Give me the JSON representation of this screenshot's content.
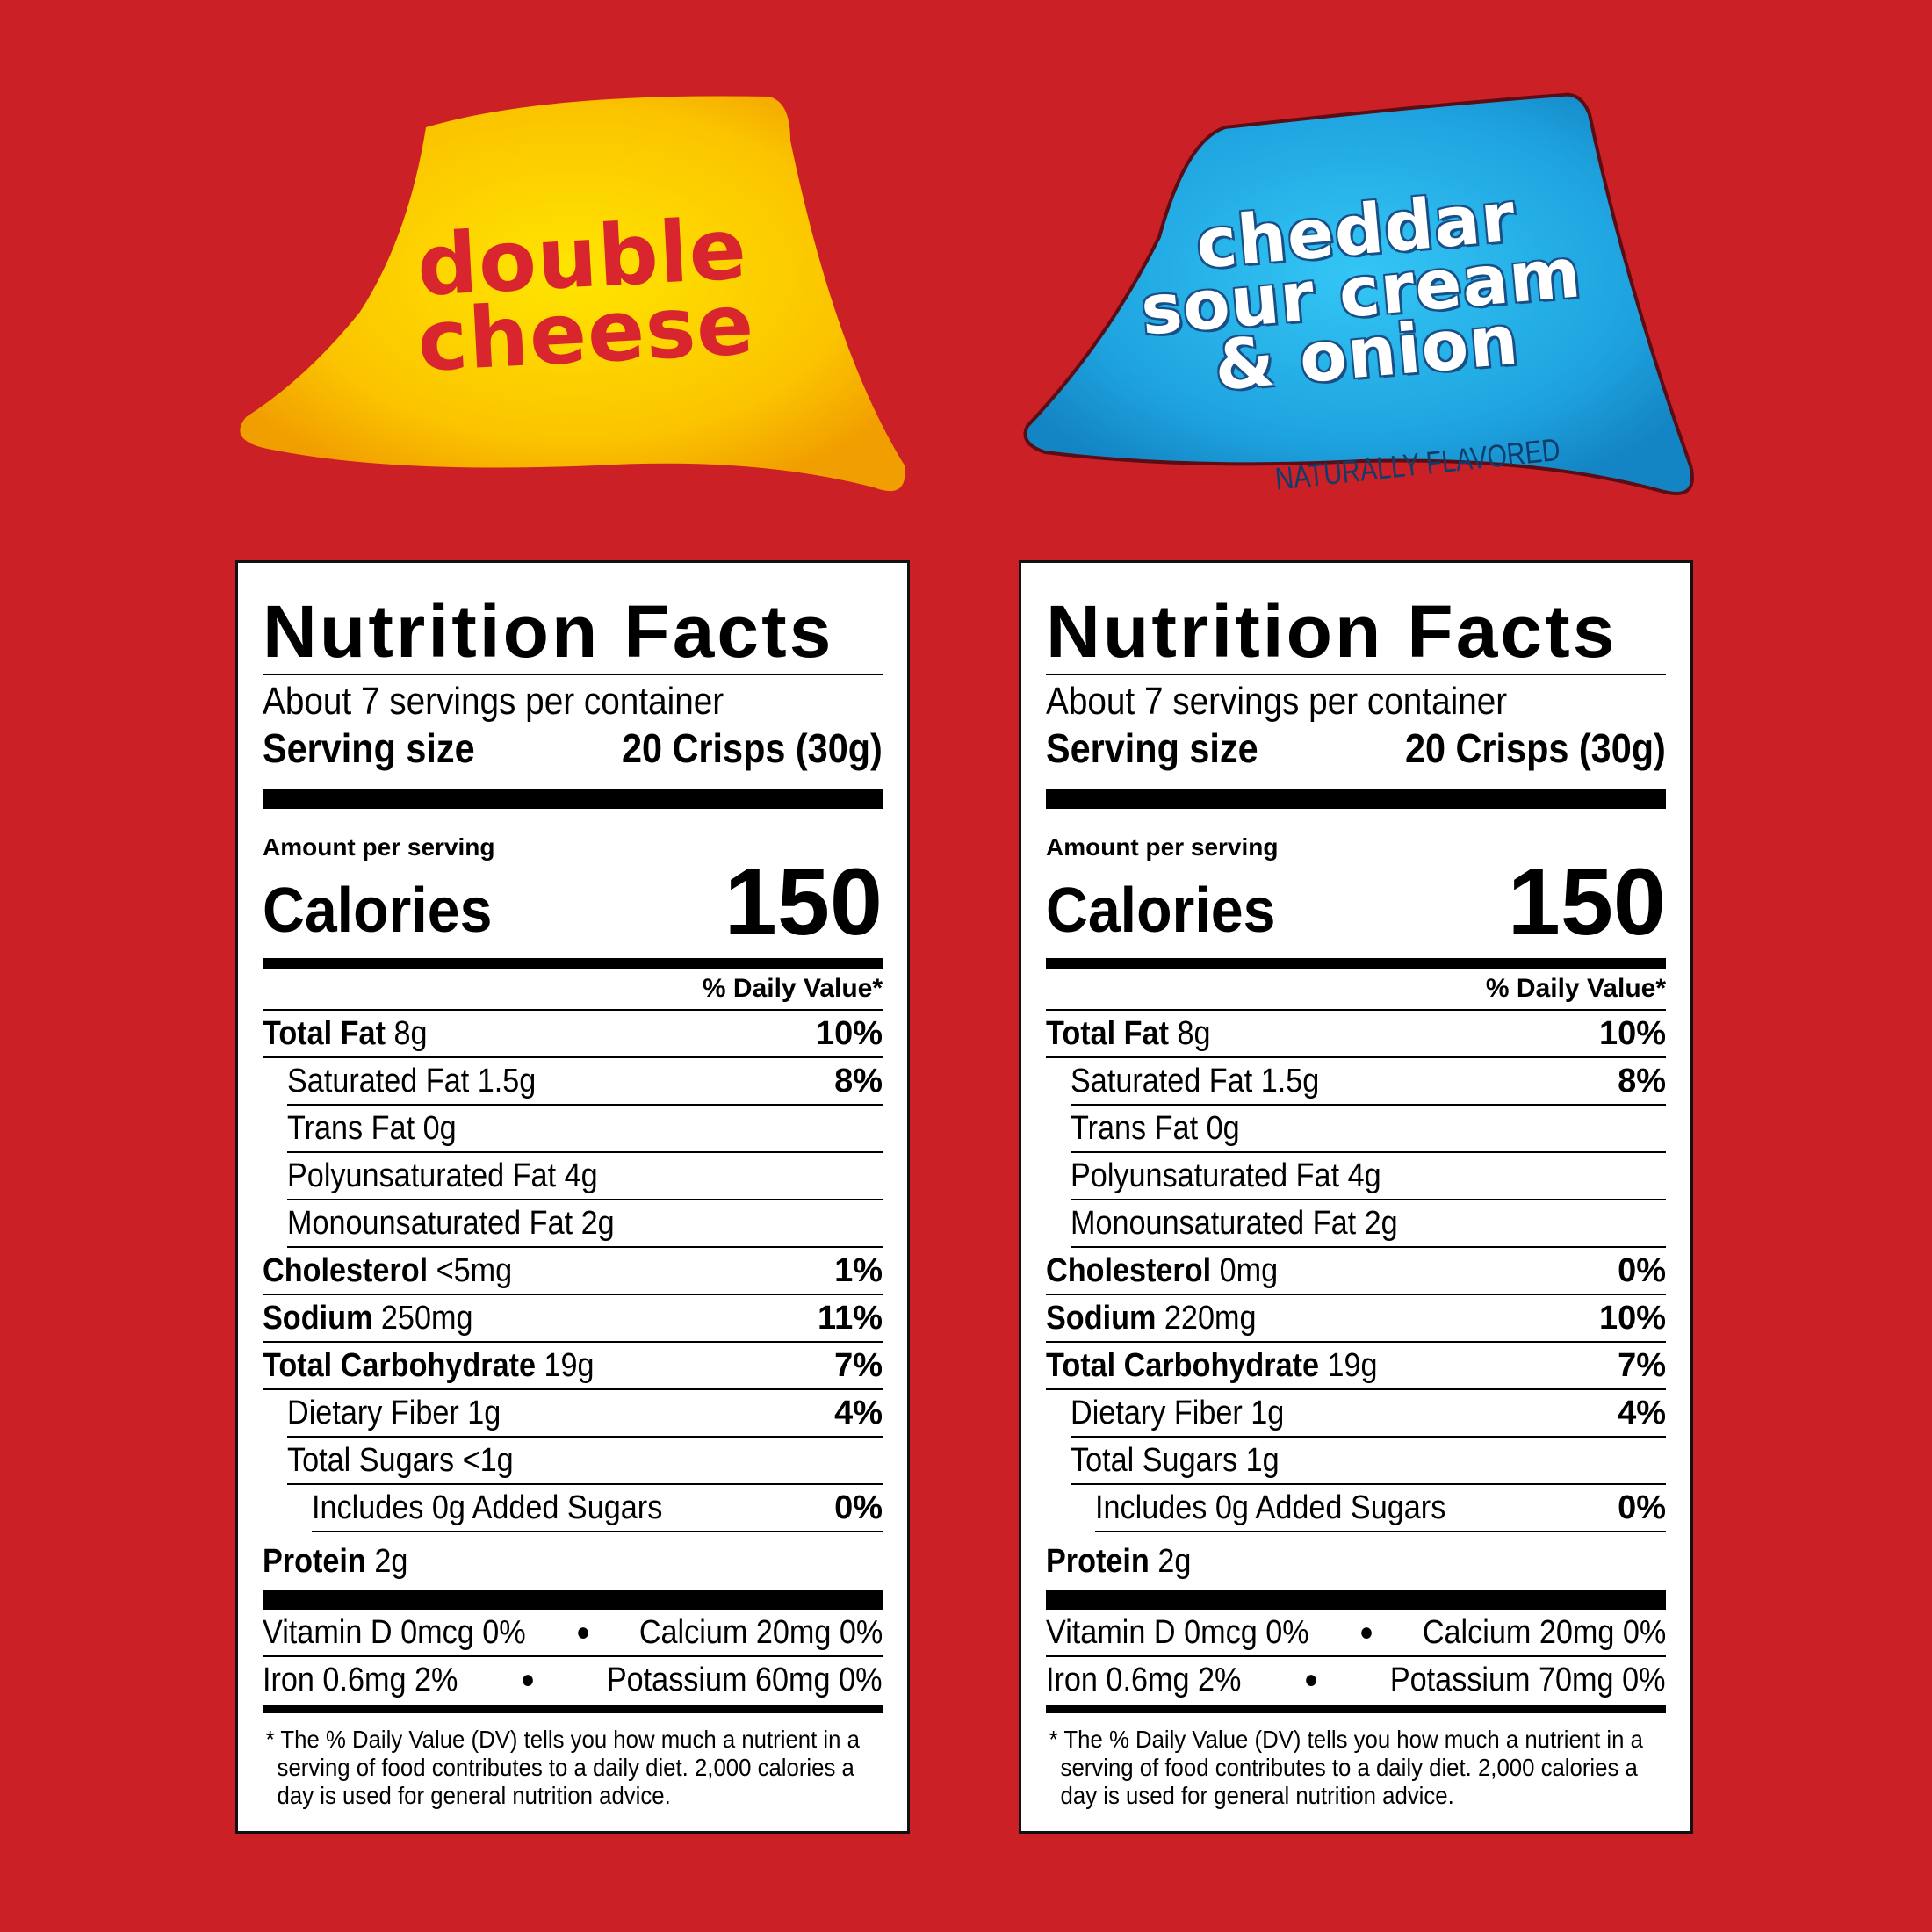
{
  "colors": {
    "background": "#cc2027",
    "flag_left": "#f7b500",
    "flag_right": "#1ea3df"
  },
  "flags": {
    "left": {
      "line1": "DOUBLE",
      "line2": "CHEESE"
    },
    "right": {
      "line1": "CHEDDAR",
      "line2": "SOUR CREAM",
      "line3": "& ONION",
      "sub": "NATURALLY FLAVORED"
    }
  },
  "labels": [
    {
      "title": "Nutrition Facts",
      "servings": "About 7 servings per container",
      "serving_size_label": "Serving size",
      "serving_size_value": "20 Crisps (30g)",
      "amount_per_serving": "Amount per serving",
      "calories_label": "Calories",
      "calories_value": "150",
      "dv_header": "% Daily Value*",
      "total_fat_label": "Total Fat",
      "total_fat_amt": "8g",
      "total_fat_dv": "10%",
      "sat_fat": "Saturated Fat 1.5g",
      "sat_fat_dv": "8%",
      "trans_fat": "Trans Fat 0g",
      "poly_fat": "Polyunsaturated Fat 4g",
      "mono_fat": "Monounsaturated Fat 2g",
      "chol_label": "Cholesterol",
      "chol_amt": "<5mg",
      "chol_dv": "1%",
      "sodium_label": "Sodium",
      "sodium_amt": "250mg",
      "sodium_dv": "11%",
      "carb_label": "Total Carbohydrate",
      "carb_amt": "19g",
      "carb_dv": "7%",
      "fiber": "Dietary Fiber 1g",
      "fiber_dv": "4%",
      "sugars": "Total Sugars <1g",
      "added_sugars": "Includes 0g Added Sugars",
      "added_sugars_dv": "0%",
      "protein_label": "Protein",
      "protein_amt": "2g",
      "vit_d": "Vitamin D 0mcg 0%",
      "calcium": "Calcium 20mg 0%",
      "iron": "Iron 0.6mg 2%",
      "potassium": "Potassium 60mg 0%",
      "footnote": "* The % Daily Value (DV) tells you how much a nutrient in a serving of food contributes to a daily diet. 2,000 calories a day is used for general nutrition advice."
    },
    {
      "title": "Nutrition Facts",
      "servings": "About 7 servings per container",
      "serving_size_label": "Serving size",
      "serving_size_value": "20 Crisps (30g)",
      "amount_per_serving": "Amount per serving",
      "calories_label": "Calories",
      "calories_value": "150",
      "dv_header": "% Daily Value*",
      "total_fat_label": "Total Fat",
      "total_fat_amt": "8g",
      "total_fat_dv": "10%",
      "sat_fat": "Saturated Fat 1.5g",
      "sat_fat_dv": "8%",
      "trans_fat": "Trans Fat 0g",
      "poly_fat": "Polyunsaturated Fat 4g",
      "mono_fat": "Monounsaturated Fat 2g",
      "chol_label": "Cholesterol",
      "chol_amt": "0mg",
      "chol_dv": "0%",
      "sodium_label": "Sodium",
      "sodium_amt": "220mg",
      "sodium_dv": "10%",
      "carb_label": "Total Carbohydrate",
      "carb_amt": "19g",
      "carb_dv": "7%",
      "fiber": "Dietary Fiber 1g",
      "fiber_dv": "4%",
      "sugars": "Total Sugars 1g",
      "added_sugars": "Includes 0g Added Sugars",
      "added_sugars_dv": "0%",
      "protein_label": "Protein",
      "protein_amt": "2g",
      "vit_d": "Vitamin D 0mcg 0%",
      "calcium": "Calcium 20mg 0%",
      "iron": "Iron 0.6mg 2%",
      "potassium": "Potassium 70mg 0%",
      "footnote": "* The % Daily Value (DV) tells you how much a nutrient in a serving of food contributes to a daily diet. 2,000 calories a day is used for general nutrition advice."
    }
  ]
}
